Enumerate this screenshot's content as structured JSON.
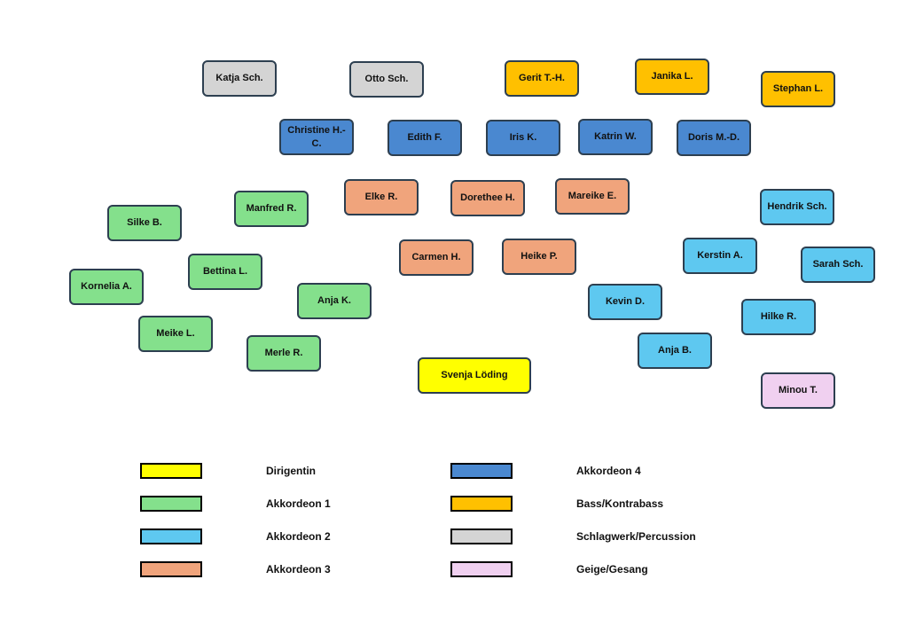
{
  "nodes": [
    {
      "label": "Katja Sch.",
      "color": "#d4d4d4"
    },
    {
      "label": "Otto Sch.",
      "color": "#d4d4d4"
    },
    {
      "label": "Gerit T.-H.",
      "color": "#ffc000"
    },
    {
      "label": "Janika L.",
      "color": "#ffc000"
    },
    {
      "label": "Stephan L.",
      "color": "#ffc000"
    },
    {
      "label": "Christine H.-C.",
      "color": "#4a88d0"
    },
    {
      "label": "Edith F.",
      "color": "#4a88d0"
    },
    {
      "label": "Iris K.",
      "color": "#4a88d0"
    },
    {
      "label": "Katrin W.",
      "color": "#4a88d0"
    },
    {
      "label": "Doris M.-D.",
      "color": "#4a88d0"
    },
    {
      "label": "Elke R.",
      "color": "#f0a47c"
    },
    {
      "label": "Dorethee H.",
      "color": "#f0a47c"
    },
    {
      "label": "Mareike E.",
      "color": "#f0a47c"
    },
    {
      "label": "Manfred R.",
      "color": "#84e08c"
    },
    {
      "label": "Silke B.",
      "color": "#84e08c"
    },
    {
      "label": "Hendrik Sch.",
      "color": "#5ec8f0"
    },
    {
      "label": "Carmen H.",
      "color": "#f0a47c"
    },
    {
      "label": "Heike P.",
      "color": "#f0a47c"
    },
    {
      "label": "Kerstin A.",
      "color": "#5ec8f0"
    },
    {
      "label": "Sarah Sch.",
      "color": "#5ec8f0"
    },
    {
      "label": "Bettina L.",
      "color": "#84e08c"
    },
    {
      "label": "Kornelia A.",
      "color": "#84e08c"
    },
    {
      "label": "Anja K.",
      "color": "#84e08c"
    },
    {
      "label": "Kevin D.",
      "color": "#5ec8f0"
    },
    {
      "label": "Hilke R.",
      "color": "#5ec8f0"
    },
    {
      "label": "Meike L.",
      "color": "#84e08c"
    },
    {
      "label": "Anja B.",
      "color": "#5ec8f0"
    },
    {
      "label": "Merle R.",
      "color": "#84e08c"
    },
    {
      "label": "Svenja Löding",
      "color": "#ffff00"
    },
    {
      "label": "Minou T.",
      "color": "#f0d0f0"
    }
  ],
  "legend": [
    {
      "label": "Dirigentin",
      "color": "#ffff00"
    },
    {
      "label": "Akkordeon 1",
      "color": "#84e08c"
    },
    {
      "label": "Akkordeon 2",
      "color": "#5ec8f0"
    },
    {
      "label": "Akkordeon 3",
      "color": "#f0a47c"
    },
    {
      "label": "Akkordeon 4",
      "color": "#4a88d0"
    },
    {
      "label": "Bass/Kontrabass",
      "color": "#ffc000"
    },
    {
      "label": "Schlagwerk/Percussion",
      "color": "#d4d4d4"
    },
    {
      "label": "Geige/Gesang",
      "color": "#f0d0f0"
    }
  ]
}
